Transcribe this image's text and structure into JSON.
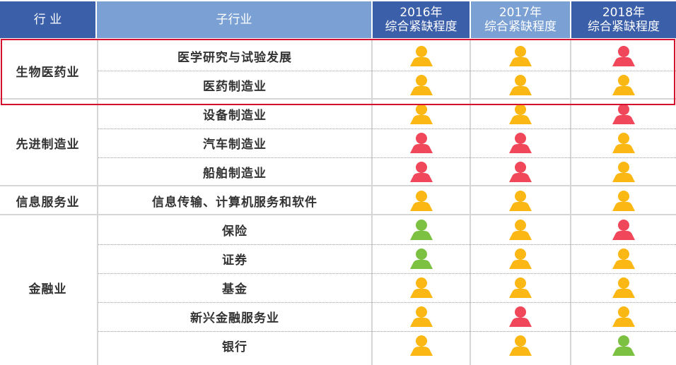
{
  "header": {
    "industry": "行 业",
    "sub_industry": "子行业",
    "years": [
      {
        "year": "2016年",
        "label": "综合紧缺程度"
      },
      {
        "year": "2017年",
        "label": "综合紧缺程度"
      },
      {
        "year": "2018年",
        "label": "综合紧缺程度"
      }
    ]
  },
  "colors": {
    "yellow": "#fbb814",
    "red": "#f0485a",
    "green": "#7dc143",
    "highlight": "#d7102d"
  },
  "groups": [
    {
      "industry": "生物医药业",
      "highlighted": true,
      "rows": [
        {
          "sub": "医学研究与试验发展",
          "levels": [
            "yellow",
            "yellow",
            "red"
          ]
        },
        {
          "sub": "医药制造业",
          "levels": [
            "yellow",
            "yellow",
            "yellow"
          ]
        }
      ]
    },
    {
      "industry": "先进制造业",
      "rows": [
        {
          "sub": "设备制造业",
          "levels": [
            "yellow",
            "yellow",
            "red"
          ]
        },
        {
          "sub": "汽车制造业",
          "levels": [
            "red",
            "red",
            "yellow"
          ]
        },
        {
          "sub": "船舶制造业",
          "levels": [
            "red",
            "red",
            "yellow"
          ]
        }
      ]
    },
    {
      "industry": "信息服务业",
      "rows": [
        {
          "sub": "信息传输、计算机服务和软件",
          "levels": [
            "yellow",
            "yellow",
            "yellow"
          ]
        }
      ]
    },
    {
      "industry": "金融业",
      "rows": [
        {
          "sub": "保险",
          "levels": [
            "green",
            "yellow",
            "red"
          ]
        },
        {
          "sub": "证券",
          "levels": [
            "green",
            "yellow",
            "yellow"
          ]
        },
        {
          "sub": "基金",
          "levels": [
            "yellow",
            "yellow",
            "yellow"
          ]
        },
        {
          "sub": "新兴金融服务业",
          "levels": [
            "yellow",
            "red",
            "yellow"
          ]
        },
        {
          "sub": "银行",
          "levels": [
            "yellow",
            "yellow",
            "green"
          ]
        }
      ]
    }
  ]
}
